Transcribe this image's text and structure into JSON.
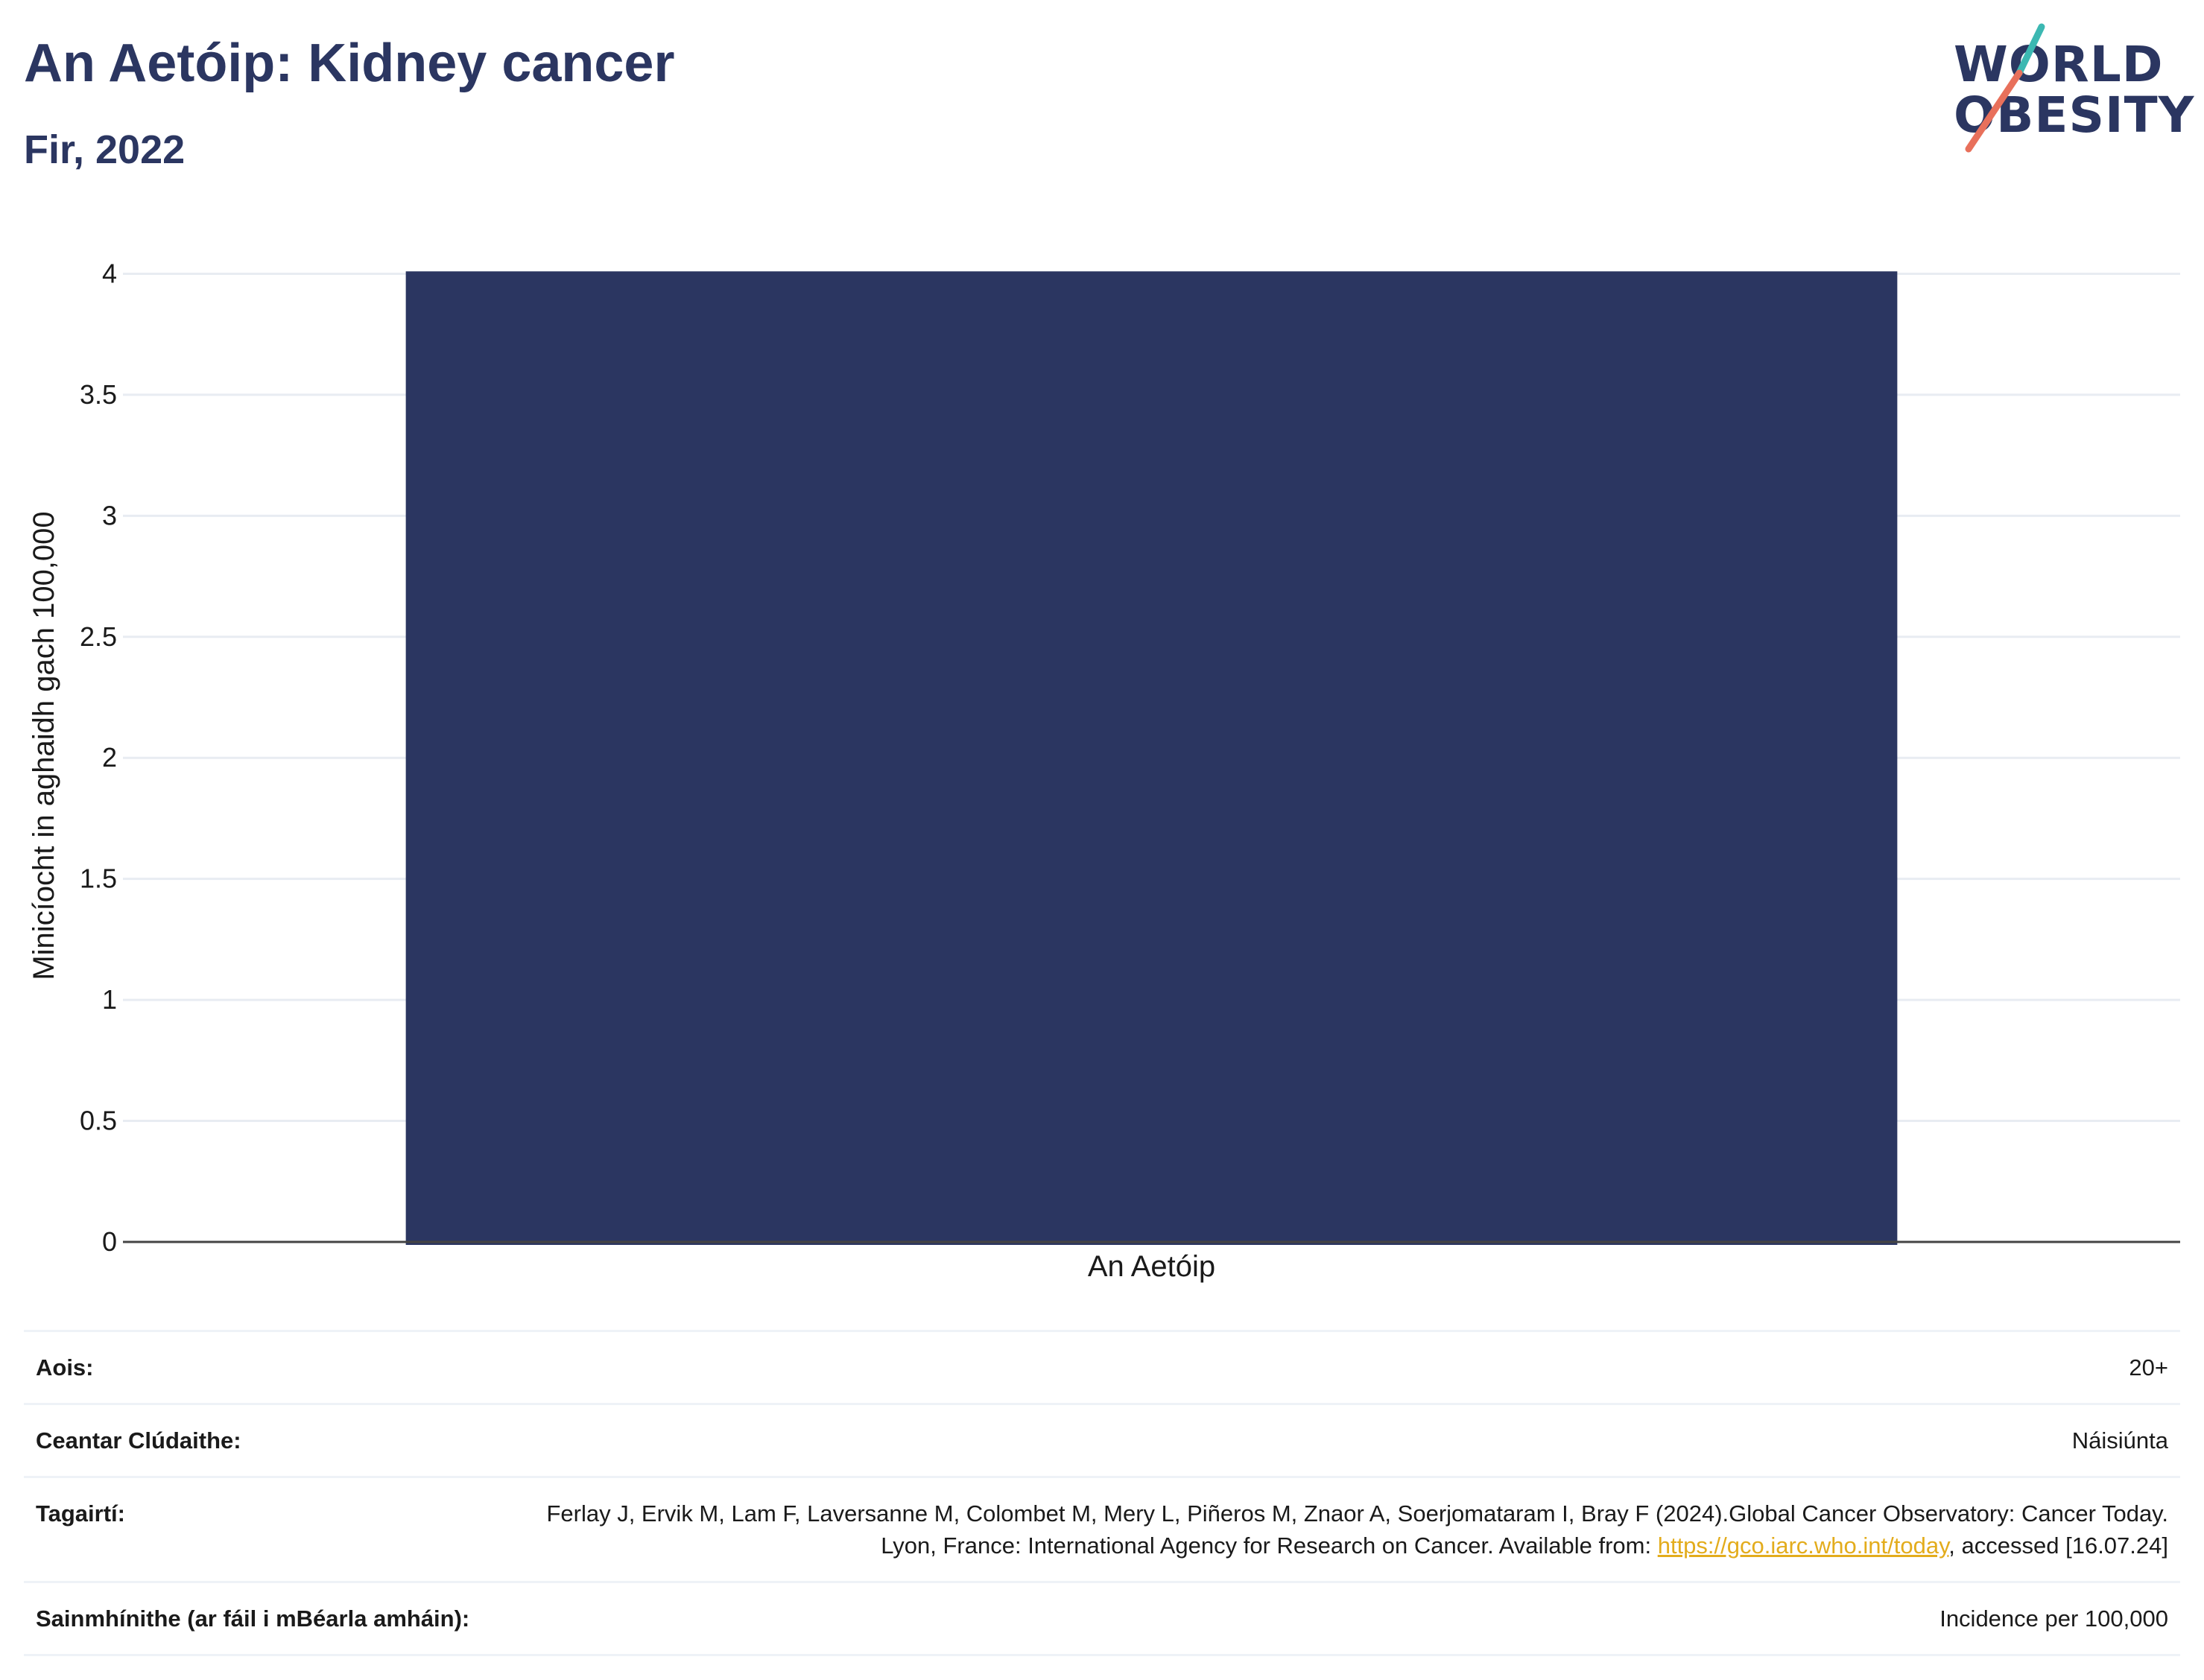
{
  "header": {
    "title": "An Aetóip: Kidney cancer",
    "subtitle": "Fir, 2022"
  },
  "logo": {
    "line1": "WORLD",
    "line2": "OBESITY",
    "accent_teal": "#3cb8b2",
    "accent_coral": "#e8705b"
  },
  "chart_data": {
    "type": "bar",
    "categories": [
      "An Aetóip"
    ],
    "values": [
      4.01
    ],
    "ylabel": "Minicíocht in aghaidh gach 100,000",
    "xlabel": "",
    "ylim": [
      0,
      4.1
    ],
    "yticks": [
      0,
      0.5,
      1,
      1.5,
      2,
      2.5,
      3,
      3.5,
      4
    ],
    "ytick_labels": [
      "0",
      "0.5",
      "1",
      "1.5",
      "2",
      "2.5",
      "3",
      "3.5",
      "4"
    ],
    "grid": true,
    "bar_color": "#2b3661"
  },
  "info": {
    "age_label": "Aois:",
    "age_value": "20+",
    "coverage_label": "Ceantar Clúdaithe:",
    "coverage_value": "Náisiúnta",
    "references_label": "Tagairtí:",
    "references_text_before": "Ferlay J, Ervik M, Lam F, Laversanne M, Colombet M, Mery L, Piñeros M, Znaor A, Soerjomataram I, Bray F (2024).Global Cancer Observatory: Cancer Today. Lyon, France: International Agency for Research on Cancer. Available from: ",
    "references_link": "https://gco.iarc.who.int/today",
    "references_text_after": ", accessed [16.07.24]",
    "definitions_label": "Sainmhínithe (ar fáil i mBéarla amháin):",
    "definitions_value": "Incidence per 100,000"
  }
}
